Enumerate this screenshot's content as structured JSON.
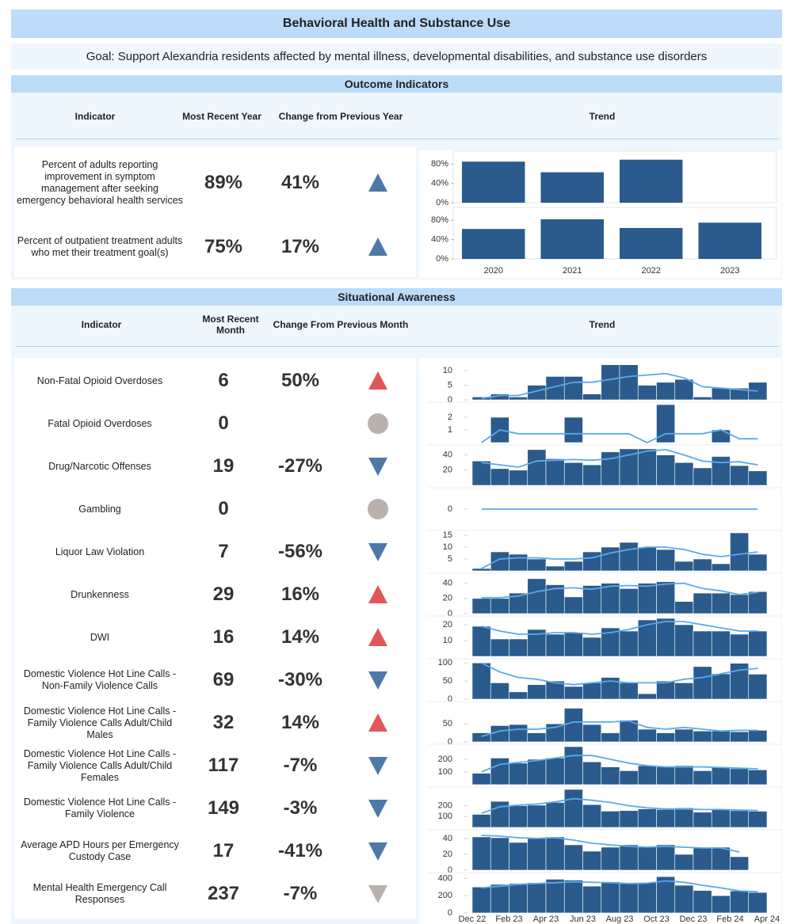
{
  "title": "Behavioral Health and Substance Use",
  "goal": "Goal: Support Alexandria residents affected by mental illness, developmental disabilities, and substance use disorders",
  "outcome": {
    "heading": "Outcome Indicators",
    "columns": {
      "indicator": "Indicator",
      "recent": "Most Recent Year",
      "change": "Change from Previous Year",
      "trend": "Trend"
    },
    "rows": [
      {
        "indicator": "Percent of adults reporting improvement in symptom management after seeking emergency behavioral health services",
        "recent": "89%",
        "change": "41%",
        "direction": "up",
        "icon_color": "#4e79a7"
      },
      {
        "indicator": "Percent of outpatient treatment adults who met their treatment goal(s)",
        "recent": "75%",
        "change": "17%",
        "direction": "up",
        "icon_color": "#4e79a7"
      }
    ]
  },
  "situational": {
    "heading": "Situational Awareness",
    "columns": {
      "indicator": "Indicator",
      "recent": "Most Recent Month",
      "change": "Change From Previous Month",
      "trend": "Trend"
    },
    "rows": [
      {
        "indicator": "Non-Fatal Opioid Overdoses",
        "recent": "6",
        "change": "50%",
        "direction": "up",
        "icon_color": "#e15759"
      },
      {
        "indicator": "Fatal Opioid Overdoses",
        "recent": "0",
        "change": null,
        "direction": "flat",
        "icon_color": "#bab0ac"
      },
      {
        "indicator": "Drug/Narcotic Offenses",
        "recent": "19",
        "change": "-27%",
        "direction": "down",
        "icon_color": "#4e79a7"
      },
      {
        "indicator": "Gambling",
        "recent": "0",
        "change": null,
        "direction": "flat",
        "icon_color": "#bab0ac"
      },
      {
        "indicator": "Liquor Law Violation",
        "recent": "7",
        "change": "-56%",
        "direction": "down",
        "icon_color": "#4e79a7"
      },
      {
        "indicator": "Drunkenness",
        "recent": "29",
        "change": "16%",
        "direction": "up",
        "icon_color": "#e15759"
      },
      {
        "indicator": "DWI",
        "recent": "16",
        "change": "14%",
        "direction": "up",
        "icon_color": "#e15759"
      },
      {
        "indicator": "Domestic Violence Hot Line Calls - Non-Family Violence Calls",
        "recent": "69",
        "change": "-30%",
        "direction": "down",
        "icon_color": "#4e79a7"
      },
      {
        "indicator": "Domestic Violence Hot Line Calls - Family Violence Calls Adult/Child Males",
        "recent": "32",
        "change": "14%",
        "direction": "up",
        "icon_color": "#e15759"
      },
      {
        "indicator": "Domestic Violence Hot Line Calls - Family Violence Calls Adult/Child Females",
        "recent": "117",
        "change": "-7%",
        "direction": "down",
        "icon_color": "#4e79a7"
      },
      {
        "indicator": "Domestic Violence Hot Line Calls - Family Violence",
        "recent": "149",
        "change": "-3%",
        "direction": "down",
        "icon_color": "#4e79a7"
      },
      {
        "indicator": "Average APD Hours per Emergency Custody Case",
        "recent": "17",
        "change": "-41%",
        "direction": "down",
        "icon_color": "#4e79a7"
      },
      {
        "indicator": "Mental Health Emergency Call Responses",
        "recent": "237",
        "change": "-7%",
        "direction": "down",
        "icon_color": "#bab0ac"
      }
    ]
  },
  "chart_data": [
    {
      "type": "bar",
      "categories": [
        "2020",
        "2021",
        "2022",
        "2023"
      ],
      "color": "#2a5b8c",
      "ylim": [
        0,
        100
      ],
      "yticks": [
        {
          "value": 0,
          "label": "0%"
        },
        {
          "value": 40,
          "label": "40%"
        },
        {
          "value": 80,
          "label": "80%"
        }
      ],
      "series": [
        {
          "values": [
            85,
            63,
            89,
            null
          ]
        },
        {
          "values": [
            62,
            82,
            64,
            75
          ]
        }
      ]
    },
    {
      "type": "bar-line",
      "color": "#2a5b8c",
      "line_color": "#5aa9ef",
      "xticks": [
        "Dec 22",
        "Feb 23",
        "Apr 23",
        "Jun 23",
        "Aug 23",
        "Oct 23",
        "Dec 23",
        "Feb 24",
        "Apr 24"
      ],
      "series": [
        {
          "ylim": [
            0,
            13
          ],
          "yticks": [
            0,
            5,
            10
          ],
          "values": [
            1,
            2,
            1,
            5,
            8,
            8,
            2,
            12,
            12,
            5,
            6,
            7,
            1,
            4,
            4,
            6
          ],
          "trend": [
            0.5,
            1.5,
            1.5,
            3,
            4.5,
            6,
            6,
            7,
            8,
            8.5,
            9,
            7.5,
            4.5,
            4,
            3.5,
            3
          ]
        },
        {
          "ylim": [
            0,
            3
          ],
          "yticks": [
            1,
            2
          ],
          "values": [
            0,
            2,
            0,
            0,
            0,
            2,
            0,
            0,
            0,
            0,
            3,
            0,
            0,
            1,
            0,
            0
          ],
          "trend": [
            0,
            1,
            0.7,
            0.7,
            0.7,
            0.7,
            0.7,
            0.7,
            0.7,
            0,
            0.7,
            0.7,
            0.7,
            1,
            0.3,
            0.3
          ]
        },
        {
          "ylim": [
            0,
            50
          ],
          "yticks": [
            20,
            40
          ],
          "values": [
            32,
            22,
            20,
            47,
            35,
            30,
            27,
            44,
            48,
            48,
            40,
            30,
            23,
            38,
            26,
            19
          ],
          "trend": [
            30,
            27,
            24,
            32,
            33,
            34,
            33,
            35,
            40,
            45,
            47,
            40,
            32,
            30,
            31,
            27
          ]
        },
        {
          "ylim": [
            -1,
            1
          ],
          "yticks": [
            0
          ],
          "values": [
            0,
            0,
            0,
            0,
            0,
            0,
            0,
            0,
            0,
            0,
            0,
            0,
            0,
            0,
            0,
            0
          ],
          "trend": [
            0,
            0,
            0,
            0,
            0,
            0,
            0,
            0,
            0,
            0,
            0,
            0,
            0,
            0,
            0,
            0
          ]
        },
        {
          "ylim": [
            0,
            16
          ],
          "yticks": [
            5,
            10,
            15
          ],
          "values": [
            1,
            8,
            7,
            5,
            2,
            4,
            8,
            10,
            12,
            10,
            9,
            4,
            5,
            3,
            16,
            7
          ],
          "trend": [
            1,
            5,
            5.5,
            5.5,
            5,
            5,
            5.5,
            7.5,
            9,
            10,
            10,
            9,
            7,
            6,
            7,
            8
          ]
        },
        {
          "ylim": [
            0,
            50
          ],
          "yticks": [
            0,
            20,
            40
          ],
          "values": [
            20,
            20,
            27,
            46,
            38,
            22,
            37,
            40,
            33,
            40,
            42,
            16,
            27,
            27,
            25,
            29
          ],
          "trend": [
            21,
            21,
            23,
            29,
            33,
            34,
            32,
            36,
            37,
            36,
            39,
            40,
            33,
            30,
            25,
            28
          ]
        },
        {
          "ylim": [
            0,
            24
          ],
          "yticks": [
            10,
            20
          ],
          "values": [
            19,
            11,
            11,
            17,
            14,
            15,
            12,
            18,
            16,
            23,
            24,
            20,
            16,
            16,
            14,
            16
          ],
          "trend": [
            19,
            16,
            14,
            14,
            15,
            15,
            14,
            15,
            17,
            20,
            22,
            22,
            20,
            18,
            16,
            16
          ]
        },
        {
          "ylim": [
            0,
            105
          ],
          "yticks": [
            0,
            50,
            100
          ],
          "values": [
            100,
            45,
            20,
            40,
            50,
            35,
            45,
            60,
            45,
            15,
            50,
            45,
            90,
            70,
            99,
            69
          ],
          "trend": [
            100,
            75,
            60,
            55,
            45,
            40,
            45,
            50,
            45,
            45,
            45,
            55,
            60,
            70,
            80,
            85
          ]
        },
        {
          "ylim": [
            0,
            105
          ],
          "yticks": [
            0,
            50
          ],
          "values": [
            25,
            45,
            48,
            25,
            50,
            93,
            48,
            25,
            60,
            35,
            25,
            35,
            30,
            30,
            28,
            32
          ],
          "trend": [
            15,
            30,
            35,
            35,
            40,
            55,
            55,
            55,
            58,
            40,
            35,
            40,
            35,
            30,
            32,
            32
          ]
        },
        {
          "ylim": [
            0,
            300
          ],
          "yticks": [
            100,
            200
          ],
          "values": [
            90,
            210,
            170,
            200,
            210,
            300,
            180,
            140,
            110,
            150,
            140,
            150,
            110,
            140,
            126,
            117
          ],
          "trend": [
            100,
            160,
            175,
            190,
            210,
            230,
            230,
            200,
            170,
            150,
            140,
            140,
            140,
            135,
            130,
            125
          ]
        },
        {
          "ylim": [
            0,
            350
          ],
          "yticks": [
            100,
            200
          ],
          "values": [
            120,
            240,
            200,
            205,
            230,
            350,
            210,
            150,
            155,
            170,
            165,
            180,
            140,
            170,
            154,
            149
          ],
          "trend": [
            130,
            190,
            205,
            215,
            235,
            265,
            250,
            230,
            200,
            180,
            170,
            170,
            165,
            165,
            160,
            155
          ]
        },
        {
          "ylim": [
            0,
            48
          ],
          "yticks": [
            0,
            20,
            40
          ],
          "values": [
            42,
            41,
            35,
            40,
            42,
            32,
            24,
            29,
            32,
            29,
            32,
            20,
            28,
            29,
            17,
            null
          ],
          "trend": [
            44,
            43,
            41,
            40,
            41,
            38,
            34,
            32,
            30,
            29,
            30,
            29,
            28,
            28,
            23,
            null
          ]
        },
        {
          "ylim": [
            0,
            440
          ],
          "yticks": [
            0,
            200,
            400
          ],
          "values": [
            300,
            330,
            340,
            350,
            390,
            380,
            310,
            360,
            340,
            350,
            420,
            320,
            260,
            200,
            255,
            237
          ],
          "trend": [
            290,
            310,
            330,
            340,
            350,
            360,
            355,
            350,
            340,
            345,
            370,
            355,
            320,
            290,
            255,
            245
          ]
        }
      ]
    }
  ]
}
